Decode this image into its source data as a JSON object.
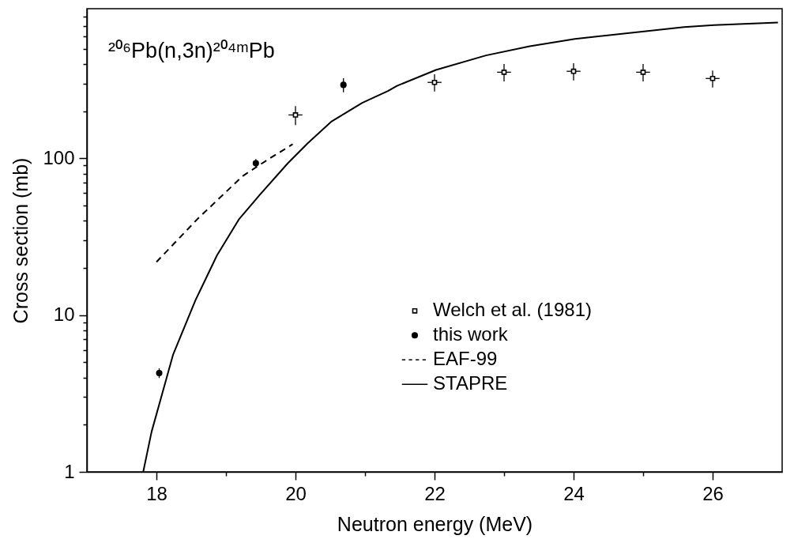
{
  "chart_data": {
    "type": "scatter",
    "annotations": [
      "²⁰⁶Pb(n,3n)²⁰⁴ᵐPb"
    ],
    "xlabel": "Neutron energy (MeV)",
    "ylabel": "Cross section (mb)",
    "xlim": [
      17,
      27
    ],
    "ylim": [
      1,
      900
    ],
    "log": "y",
    "grid": false,
    "legend": "bottom",
    "xticks": [
      18,
      {
        "value": 19,
        "label": null
      },
      20,
      {
        "value": 21,
        "label": null
      },
      22,
      {
        "value": 23,
        "label": null
      },
      24,
      {
        "value": 25,
        "label": null
      },
      26
    ],
    "yticks": [
      1,
      {
        "value": 2,
        "label": null
      },
      {
        "value": 3,
        "label": null
      },
      {
        "value": 4,
        "label": null
      },
      {
        "value": 5,
        "label": null
      },
      {
        "value": 6,
        "label": null
      },
      {
        "value": 7,
        "label": null
      },
      {
        "value": 8,
        "label": null
      },
      {
        "value": 9,
        "label": null
      },
      10,
      {
        "value": 20,
        "label": null
      },
      {
        "value": 30,
        "label": null
      },
      {
        "value": 40,
        "label": null
      },
      {
        "value": 50,
        "label": null
      },
      {
        "value": 60,
        "label": null
      },
      {
        "value": 70,
        "label": null
      },
      {
        "value": 80,
        "label": null
      },
      {
        "value": 90,
        "label": null
      },
      100,
      {
        "value": 200,
        "label": null
      },
      {
        "value": 300,
        "label": null
      },
      {
        "value": 400,
        "label": null
      },
      {
        "value": 500,
        "label": null
      },
      {
        "value": 600,
        "label": null
      },
      {
        "value": 700,
        "label": null
      },
      {
        "value": 800,
        "label": null
      }
    ],
    "series": [
      {
        "name": "Welch et al. (1981)",
        "type": "scatter",
        "marker": "square",
        "color": "#000000",
        "x": [
          20,
          22,
          23,
          24,
          25,
          26
        ],
        "values": [
          189,
          305,
          354,
          359,
          354,
          323
        ],
        "errors": [
          26,
          38,
          45,
          45,
          45,
          40
        ],
        "xerrors": [
          0.1,
          0.1,
          0.1,
          0.1,
          0.1,
          0.1
        ]
      },
      {
        "name": "this work",
        "type": "scatter",
        "marker": "circle",
        "color": "#000000",
        "x": [
          18.04,
          19.43,
          20.69
        ],
        "values": [
          4.27,
          93,
          294
        ],
        "errors": [
          0.3,
          6,
          30
        ]
      },
      {
        "name": "EAF-99",
        "type": "line",
        "line_style": "dashed",
        "color": "#000000",
        "x": [
          18.0,
          18.59,
          19.24,
          19.6,
          19.96
        ],
        "values": [
          21.8,
          41,
          77,
          98,
          123
        ]
      },
      {
        "name": "STAPRE",
        "type": "line",
        "line_style": "solid",
        "color": "#000000",
        "x": [
          17.81,
          17.93,
          18.24,
          18.56,
          18.87,
          19.19,
          19.48,
          19.89,
          20.17,
          20.52,
          20.96,
          21.33,
          21.46,
          22.02,
          22.74,
          23.37,
          24.02,
          25.04,
          25.59,
          26.02,
          26.94
        ],
        "values": [
          1.0,
          1.8,
          5.6,
          12.4,
          24,
          41,
          58,
          93,
          124,
          172,
          226,
          269,
          290,
          366,
          453,
          519,
          577,
          647,
          688,
          707,
          735
        ]
      }
    ]
  }
}
